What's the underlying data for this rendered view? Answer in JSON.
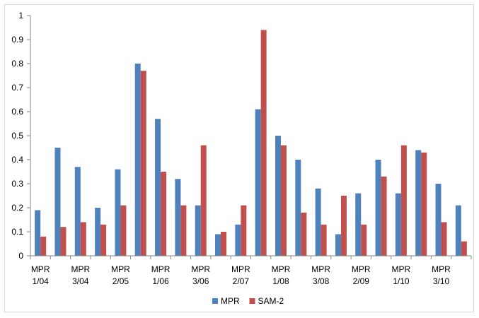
{
  "chart_data": {
    "type": "bar",
    "categories": [
      "MPR 1/04",
      "",
      "MPR 3/04",
      "",
      "MPR 2/05",
      "",
      "MPR 1/06",
      "",
      "MPR 3/06",
      "",
      "MPR 2/07",
      "",
      "MPR 1/08",
      "",
      "MPR 3/08",
      "",
      "MPR 2/09",
      "",
      "MPR 1/10",
      "",
      "MPR 3/10",
      ""
    ],
    "series": [
      {
        "name": "MPR",
        "color": "#4f81bd",
        "values": [
          0.19,
          0.45,
          0.37,
          0.2,
          0.36,
          0.8,
          0.57,
          0.32,
          0.21,
          0.09,
          0.13,
          0.61,
          0.5,
          0.4,
          0.28,
          0.09,
          0.26,
          0.4,
          0.26,
          0.44,
          0.3,
          0.21
        ]
      },
      {
        "name": "SAM-2",
        "color": "#c0504d",
        "values": [
          0.08,
          0.12,
          0.14,
          0.13,
          0.21,
          0.77,
          0.35,
          0.21,
          0.46,
          0.1,
          0.21,
          0.94,
          0.46,
          0.18,
          0.13,
          0.25,
          0.13,
          0.33,
          0.46,
          0.43,
          0.14,
          0.06
        ]
      }
    ],
    "ylim": [
      0,
      1
    ],
    "yticks": [
      "0",
      "0.1",
      "0.2",
      "0.3",
      "0.4",
      "0.5",
      "0.6",
      "0.7",
      "0.8",
      "0.9",
      "1"
    ],
    "xtick_labels": [
      {
        "line1": "MPR",
        "line2": "1/04"
      },
      {
        "line1": "MPR",
        "line2": "3/04"
      },
      {
        "line1": "MPR",
        "line2": "2/05"
      },
      {
        "line1": "MPR",
        "line2": "1/06"
      },
      {
        "line1": "MPR",
        "line2": "3/06"
      },
      {
        "line1": "MPR",
        "line2": "2/07"
      },
      {
        "line1": "MPR",
        "line2": "1/08"
      },
      {
        "line1": "MPR",
        "line2": "3/08"
      },
      {
        "line1": "MPR",
        "line2": "2/09"
      },
      {
        "line1": "MPR",
        "line2": "1/10"
      },
      {
        "line1": "MPR",
        "line2": "3/10"
      }
    ],
    "grid": false,
    "legend": "bottom"
  }
}
